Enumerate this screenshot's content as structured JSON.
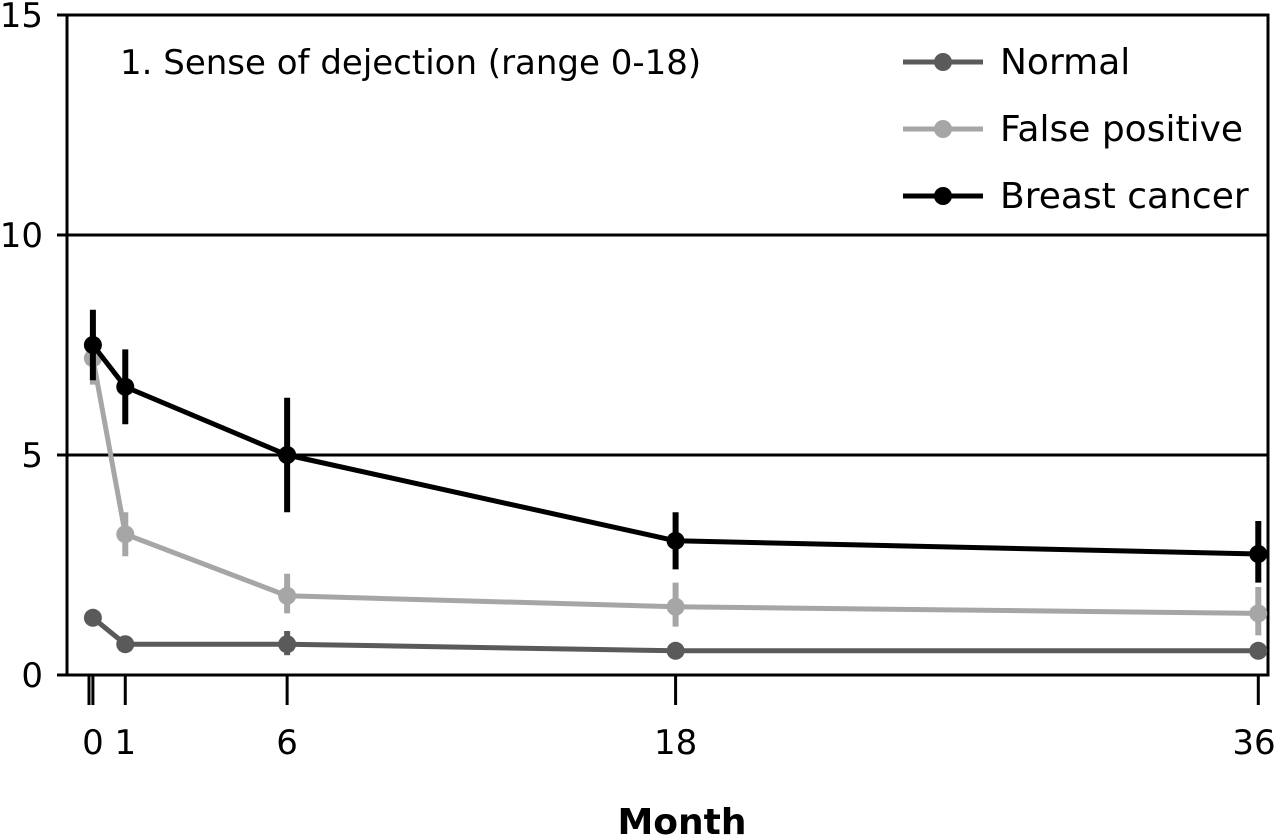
{
  "chart_data": {
    "type": "line",
    "title": "1. Sense of dejection (range 0-18)",
    "xlabel": "Month",
    "ylabel": "",
    "x": [
      0,
      1,
      6,
      18,
      36
    ],
    "x_tick_labels": [
      "0",
      "1",
      "6",
      "18",
      "36"
    ],
    "ylim": [
      0,
      15
    ],
    "y_ticks": [
      0,
      5,
      10,
      15
    ],
    "y_tick_labels": [
      "0",
      "5",
      "10",
      "15"
    ],
    "grid": "horizontal",
    "legend_position": "top-right",
    "series": [
      {
        "name": "Normal",
        "color": "#5a5a5a",
        "values": [
          1.3,
          0.7,
          0.7,
          0.55,
          0.55
        ],
        "error_low": [
          null,
          null,
          0.45,
          null,
          null
        ],
        "error_high": [
          null,
          null,
          1.0,
          null,
          null
        ]
      },
      {
        "name": "False positive",
        "color": "#a6a6a6",
        "values": [
          7.2,
          3.2,
          1.8,
          1.55,
          1.4
        ],
        "error_low": [
          6.6,
          2.7,
          1.4,
          1.1,
          0.9
        ],
        "error_high": [
          7.8,
          3.7,
          2.3,
          2.1,
          2.0
        ]
      },
      {
        "name": "Breast cancer",
        "color": "#000000",
        "values": [
          7.5,
          6.55,
          5.0,
          3.05,
          2.75
        ],
        "error_low": [
          6.7,
          5.7,
          3.7,
          2.4,
          2.1
        ],
        "error_high": [
          8.3,
          7.4,
          6.3,
          3.7,
          3.5
        ]
      }
    ]
  }
}
